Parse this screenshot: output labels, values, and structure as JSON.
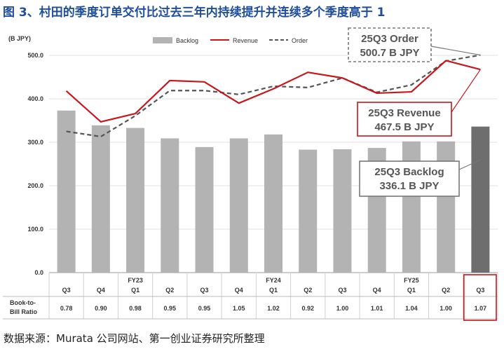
{
  "figure": {
    "title": "图 3、村田的季度订单交付比过去三年内持续提升并连续多个季度高于 1",
    "source": "数据来源：Murata 公司网站、第一创业证券研究所整理"
  },
  "chart_data": {
    "type": "bar",
    "unit_label": "(B JPY)",
    "ylim": [
      0,
      500
    ],
    "yticks": [
      "0.0",
      "100.0",
      "200.0",
      "300.0",
      "400.0",
      "500.0"
    ],
    "categories": [
      {
        "fy": "",
        "q": "Q3"
      },
      {
        "fy": "",
        "q": "Q4"
      },
      {
        "fy": "FY23",
        "q": "Q1"
      },
      {
        "fy": "",
        "q": "Q2"
      },
      {
        "fy": "",
        "q": "Q3"
      },
      {
        "fy": "",
        "q": "Q4"
      },
      {
        "fy": "FY24",
        "q": "Q1"
      },
      {
        "fy": "",
        "q": "Q2"
      },
      {
        "fy": "",
        "q": "Q3"
      },
      {
        "fy": "",
        "q": "Q4"
      },
      {
        "fy": "FY25",
        "q": "Q1"
      },
      {
        "fy": "",
        "q": "Q2"
      },
      {
        "fy": "",
        "q": "Q3"
      }
    ],
    "series": [
      {
        "name": "Backlog",
        "kind": "bar",
        "color": "#b3b3b3",
        "highlight_color": "#6e6e6e",
        "values": [
          373,
          339,
          333,
          309,
          289,
          309,
          318,
          283,
          284,
          287,
          302,
          302,
          336.1
        ]
      },
      {
        "name": "Revenue",
        "kind": "line",
        "color": "#c8161d",
        "values": [
          418,
          347,
          366,
          442,
          439,
          390,
          423,
          461,
          448,
          413,
          416,
          488,
          467.5
        ]
      },
      {
        "name": "Order",
        "kind": "dashed-line",
        "color": "#555555",
        "values": [
          325,
          313,
          361,
          419,
          419,
          410,
          429,
          426,
          448,
          415,
          432,
          487,
          500.7
        ]
      }
    ],
    "table": {
      "row_label": [
        "Book-to-",
        "Bill Ratio"
      ],
      "values": [
        "0.78",
        "0.90",
        "0.98",
        "0.95",
        "0.95",
        "1.05",
        "1.02",
        "0.92",
        "1.00",
        "1.01",
        "1.04",
        "1.00",
        "1.07"
      ],
      "highlight_index": 12,
      "highlight_color": "#c8161d"
    },
    "callouts": [
      {
        "id": "order",
        "lines": [
          "25Q3 Order",
          "500.7 B JPY"
        ],
        "style": "dashed"
      },
      {
        "id": "revenue",
        "lines": [
          "25Q3 Revenue",
          "467.5 B JPY"
        ],
        "style": "red"
      },
      {
        "id": "backlog",
        "lines": [
          "25Q3 Backlog",
          "336.1 B JPY"
        ],
        "style": "gray"
      }
    ]
  }
}
